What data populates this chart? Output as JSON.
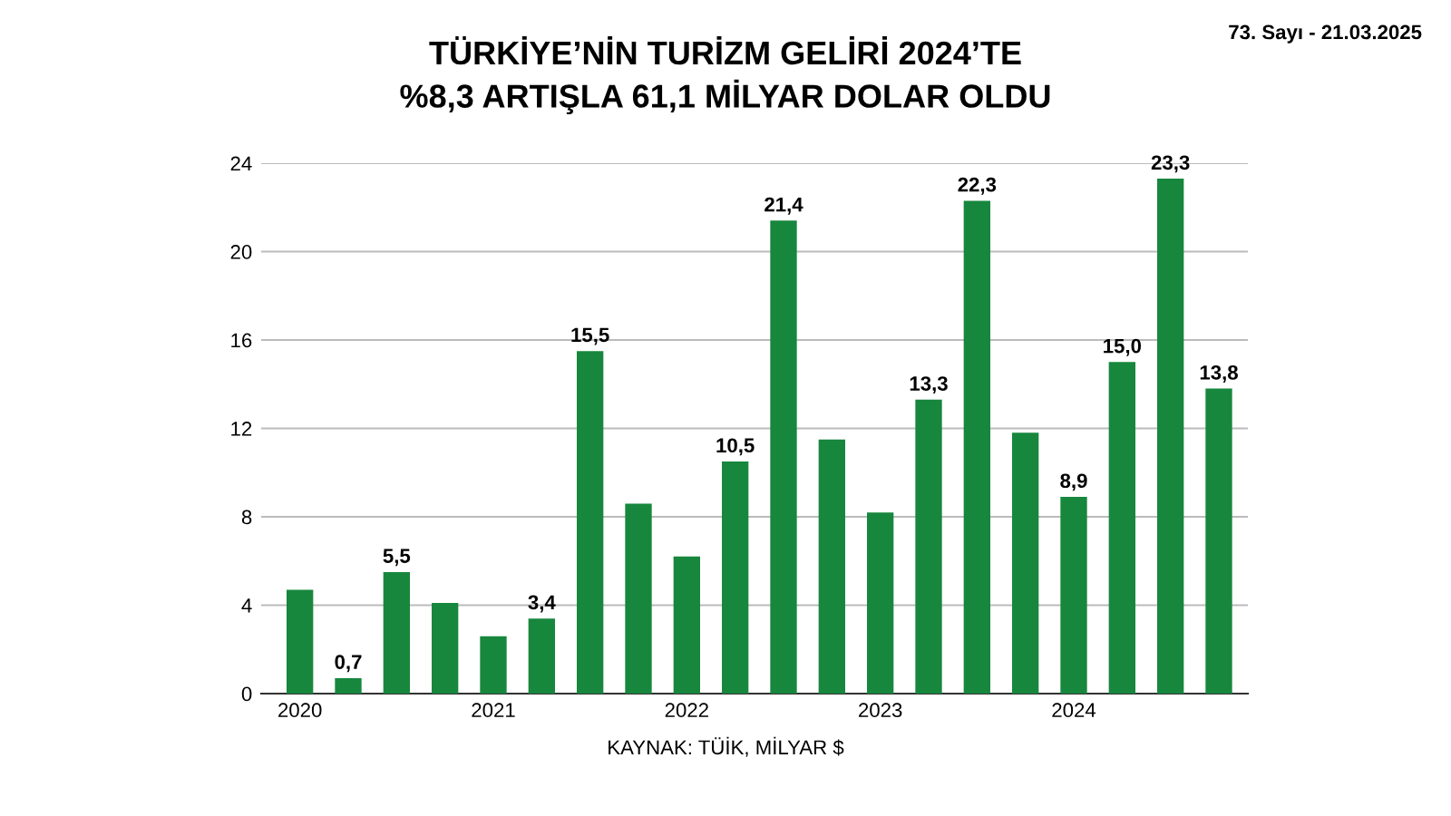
{
  "chart_data": {
    "type": "bar",
    "title": "TÜRKİYE’NİN TURİZM GELİRİ 2024’TE\n%8,3 ARTIŞLA 61,1 MİLYAR DOLAR OLDU",
    "categories": [
      "2020",
      null,
      null,
      null,
      "2021",
      null,
      null,
      null,
      "2022",
      null,
      null,
      null,
      "2023",
      null,
      null,
      null,
      "2024",
      null,
      null,
      null
    ],
    "values": [
      4.7,
      0.7,
      5.5,
      4.1,
      2.6,
      3.4,
      15.5,
      8.6,
      6.2,
      10.5,
      21.4,
      11.5,
      8.2,
      13.3,
      22.3,
      11.8,
      8.9,
      15.0,
      23.3,
      13.8
    ],
    "value_labels": [
      null,
      "0,7",
      "5,5",
      null,
      null,
      "3,4",
      "15,5",
      null,
      null,
      "10,5",
      "21,4",
      null,
      null,
      "13,3",
      "22,3",
      null,
      "8,9",
      "15,0",
      "23,3",
      "13,8"
    ],
    "color": "#17873d",
    "ylim": [
      0,
      24
    ],
    "yticks": [
      0,
      4,
      8,
      12,
      16,
      20,
      24
    ],
    "grid": "y",
    "annotations": [
      "KAYNAK: TÜİK, MİLYAR $",
      "73. Sayı - 21.03.2025"
    ]
  }
}
